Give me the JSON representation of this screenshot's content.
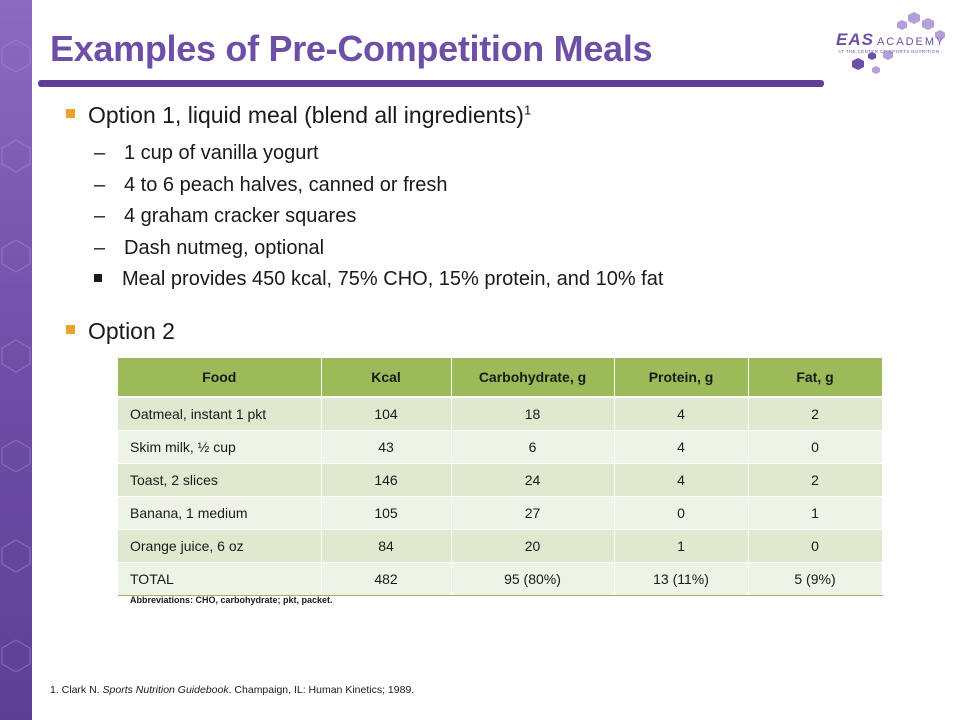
{
  "title": "Examples of Pre-Competition Meals",
  "logo": {
    "brand": "EAS",
    "academy": "ACADEMY",
    "tagline": "AT THE CENTER OF SPORTS NUTRITION",
    "color": "#6e4fa6"
  },
  "option1": {
    "heading": "Option 1, liquid meal (blend all ingredients)",
    "superscript": "1",
    "items": [
      "1 cup of vanilla yogurt",
      "4 to 6 peach halves, canned or fresh",
      "4 graham cracker squares",
      "Dash nutmeg, optional"
    ],
    "note": "Meal provides 450 kcal, 75% CHO,  15% protein, and 10% fat"
  },
  "option2": {
    "heading": "Option 2"
  },
  "table": {
    "headers": [
      "Food",
      "Kcal",
      "Carbohydrate, g",
      "Protein, g",
      "Fat, g"
    ],
    "rows": [
      [
        "Oatmeal, instant 1 pkt",
        "104",
        "18",
        "4",
        "2"
      ],
      [
        "Skim milk, ½ cup",
        "43",
        "6",
        "4",
        "0"
      ],
      [
        "Toast, 2 slices",
        "146",
        "24",
        "4",
        "2"
      ],
      [
        "Banana, 1 medium",
        "105",
        "27",
        "0",
        "1"
      ],
      [
        "Orange juice, 6 oz",
        "84",
        "20",
        "1",
        "0"
      ],
      [
        "TOTAL",
        "482",
        "95 (80%)",
        "13 (11%)",
        "5 (9%)"
      ]
    ]
  },
  "abbreviations": "Abbreviations: CHO, carbohydrate; pkt, packet.",
  "reference": {
    "prefix": "1. Clark N. ",
    "book": "Sports Nutrition Guidebook",
    "suffix": ". Champaign, IL: Human Kinetics; 1989."
  },
  "colors": {
    "title": "#6e4fa6",
    "bullet": "#f0a030",
    "table_header": "#9bbb59",
    "row_odd": "#dfe9cf",
    "row_even": "#eef3e7"
  }
}
